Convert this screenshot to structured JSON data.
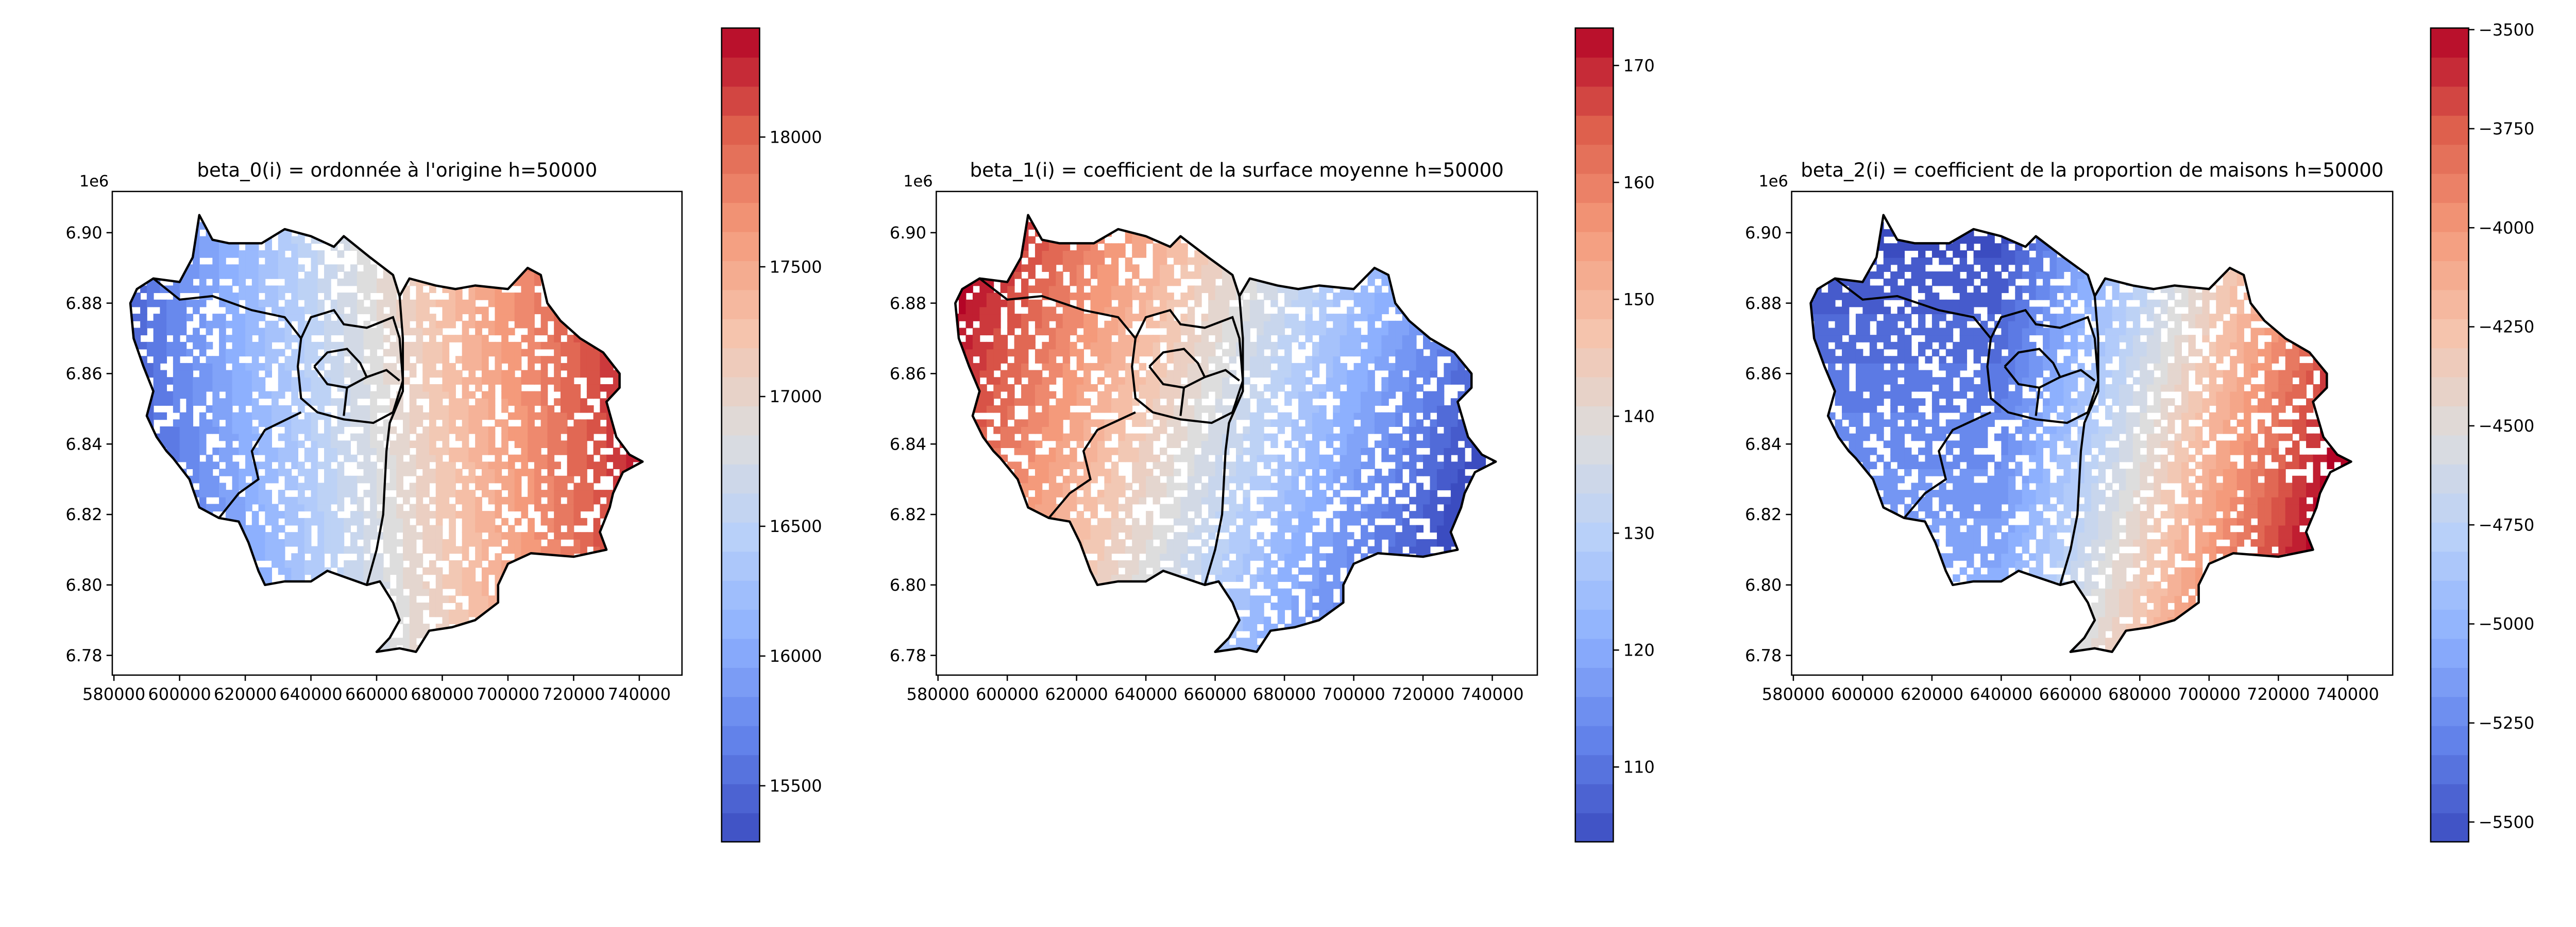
{
  "chart_data": [
    {
      "type": "heatmap",
      "title": "beta_0(i) = ordonnée à l'origine  h=50000",
      "xlabel": "",
      "ylabel": "",
      "x_ticks": [
        "580000",
        "600000",
        "620000",
        "640000",
        "660000",
        "680000",
        "700000",
        "720000",
        "740000"
      ],
      "y_ticks": [
        "6.78",
        "6.80",
        "6.82",
        "6.84",
        "6.86",
        "6.88",
        "6.90"
      ],
      "y_offset_label": "1e6",
      "xlim": [
        579500,
        753000
      ],
      "ylim": [
        6.7744,
        6.9117
      ],
      "colormap": "coolwarm",
      "colorbar": {
        "range": [
          15284,
          18420
        ],
        "ticks": [
          15500,
          16000,
          16500,
          17000,
          17500,
          18000
        ],
        "tick_labels": [
          "15500",
          "16000",
          "16500",
          "17000",
          "17500",
          "18000"
        ]
      },
      "gradient": "low (blue) in west, rising to high (red) in east"
    },
    {
      "type": "heatmap",
      "title": "beta_1(i) = coefficient de la surface moyenne h=50000",
      "xlabel": "",
      "ylabel": "",
      "x_ticks": [
        "580000",
        "600000",
        "620000",
        "640000",
        "660000",
        "680000",
        "700000",
        "720000",
        "740000"
      ],
      "y_ticks": [
        "6.78",
        "6.80",
        "6.82",
        "6.84",
        "6.86",
        "6.88",
        "6.90"
      ],
      "y_offset_label": "1e6",
      "xlim": [
        579500,
        753000
      ],
      "ylim": [
        6.7744,
        6.9117
      ],
      "colormap": "coolwarm",
      "colorbar": {
        "range": [
          103.6,
          173.2
        ],
        "ticks": [
          110,
          120,
          130,
          140,
          150,
          160,
          170
        ],
        "tick_labels": [
          "110",
          "120",
          "130",
          "140",
          "150",
          "160",
          "170"
        ]
      },
      "gradient": "high (red) in north-west, falling to low (blue) in east"
    },
    {
      "type": "heatmap",
      "title": "beta_2(i) = coefficient de la proportion de maisons h=50000",
      "xlabel": "",
      "ylabel": "",
      "x_ticks": [
        "580000",
        "600000",
        "620000",
        "640000",
        "660000",
        "680000",
        "700000",
        "720000",
        "740000"
      ],
      "y_ticks": [
        "6.78",
        "6.80",
        "6.82",
        "6.84",
        "6.86",
        "6.88",
        "6.90"
      ],
      "y_offset_label": "1e6",
      "xlim": [
        579500,
        753000
      ],
      "ylim": [
        6.7744,
        6.9117
      ],
      "colormap": "coolwarm",
      "colorbar": {
        "range": [
          -5550,
          -3496
        ],
        "ticks": [
          -5500,
          -5250,
          -5000,
          -4750,
          -4500,
          -4250,
          -4000,
          -3750,
          -3500
        ],
        "tick_labels": [
          "−5500",
          "−5250",
          "−5000",
          "−4750",
          "−4500",
          "−4250",
          "−4000",
          "−3750",
          "−3500"
        ]
      },
      "gradient": "low (blue) in west and centre, rising to high (red) in east"
    }
  ]
}
